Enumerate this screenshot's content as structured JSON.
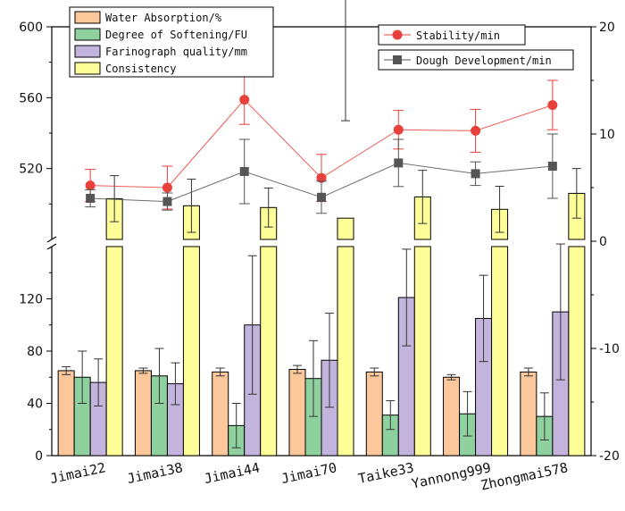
{
  "chart_data": {
    "type": "bar",
    "categories": [
      "Jimai22",
      "Jimai38",
      "Jimai44",
      "Jimai70",
      "Taike33",
      "Yannong999",
      "Zhongmai578"
    ],
    "left_axis": {
      "lower_segment": {
        "ylim": [
          0,
          160
        ],
        "ticks": [
          0,
          40,
          80,
          120
        ]
      },
      "upper_segment": {
        "ylim": [
          480,
          600
        ],
        "ticks": [
          520,
          560,
          600
        ]
      }
    },
    "right_axis": {
      "ylim": [
        -20,
        20
      ],
      "ticks": [
        -20,
        -10,
        0,
        10,
        20
      ],
      "tick_labels": [
        "-20",
        "-10",
        "0",
        "10",
        "20"
      ]
    },
    "bar_series": [
      {
        "name": "Water Absorption/%",
        "color": "#FBC79B",
        "values": [
          65,
          65,
          64,
          66,
          64,
          60,
          64
        ],
        "errors": [
          3,
          2,
          3,
          3,
          3,
          2,
          3
        ]
      },
      {
        "name": "Degree of Softening/FU",
        "color": "#8FD19E",
        "values": [
          60,
          61,
          23,
          59,
          31,
          32,
          30
        ],
        "errors": [
          20,
          21,
          17,
          29,
          11,
          17,
          18
        ]
      },
      {
        "name": "Farinograph quality/mm",
        "color": "#C3B4DD",
        "values": [
          56,
          55,
          100,
          73,
          121,
          105,
          110
        ],
        "errors": [
          18,
          16,
          53,
          36,
          37,
          33,
          52
        ]
      },
      {
        "name": "Consistency",
        "color": "#FFFF99",
        "values": [
          503,
          499,
          498,
          492,
          504,
          497,
          506
        ],
        "errors": [
          13,
          15,
          11,
          55,
          15,
          13,
          14
        ]
      }
    ],
    "line_series": [
      {
        "name": "Stability/min",
        "color": "#E8413C",
        "marker": "circle",
        "values": [
          5.2,
          5.0,
          13.2,
          5.9,
          10.4,
          10.3,
          12.7
        ],
        "errors": [
          1.5,
          2.0,
          2.3,
          2.2,
          1.8,
          2.0,
          2.3
        ]
      },
      {
        "name": "Dough Development/min",
        "color": "#555555",
        "marker": "square",
        "values": [
          4.0,
          3.7,
          6.5,
          4.1,
          7.3,
          6.3,
          7.0
        ],
        "errors": [
          0.8,
          0.8,
          3.0,
          1.5,
          2.2,
          1.1,
          3.0
        ]
      }
    ]
  }
}
